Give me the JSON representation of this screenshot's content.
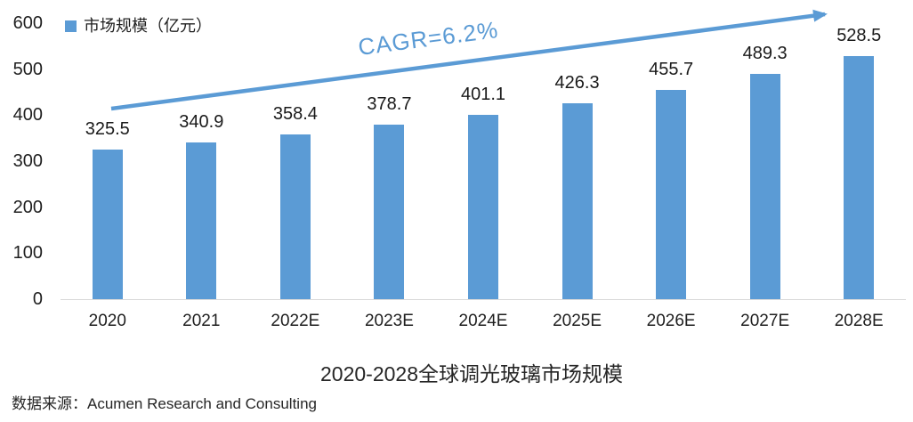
{
  "chart_data": {
    "type": "bar",
    "title": "2020-2028全球调光玻璃市场规模",
    "legend": "市场规模（亿元）",
    "categories": [
      "2020",
      "2021",
      "2022E",
      "2023E",
      "2024E",
      "2025E",
      "2026E",
      "2027E",
      "2028E"
    ],
    "values": [
      325.5,
      340.9,
      358.4,
      378.7,
      401.1,
      426.3,
      455.7,
      489.3,
      528.5
    ],
    "annotation": "CAGR=6.2%",
    "ylim": [
      0,
      600
    ],
    "yticks": [
      0,
      100,
      200,
      300,
      400,
      500,
      600
    ],
    "grid": false,
    "legend_position": "top-left",
    "bar_color": "#5b9bd5",
    "arrow_color": "#5b9bd5",
    "annotation_color": "#5b9bd5"
  },
  "source": {
    "prefix": "数据来源：",
    "text": "Acumen Research and Consulting"
  }
}
